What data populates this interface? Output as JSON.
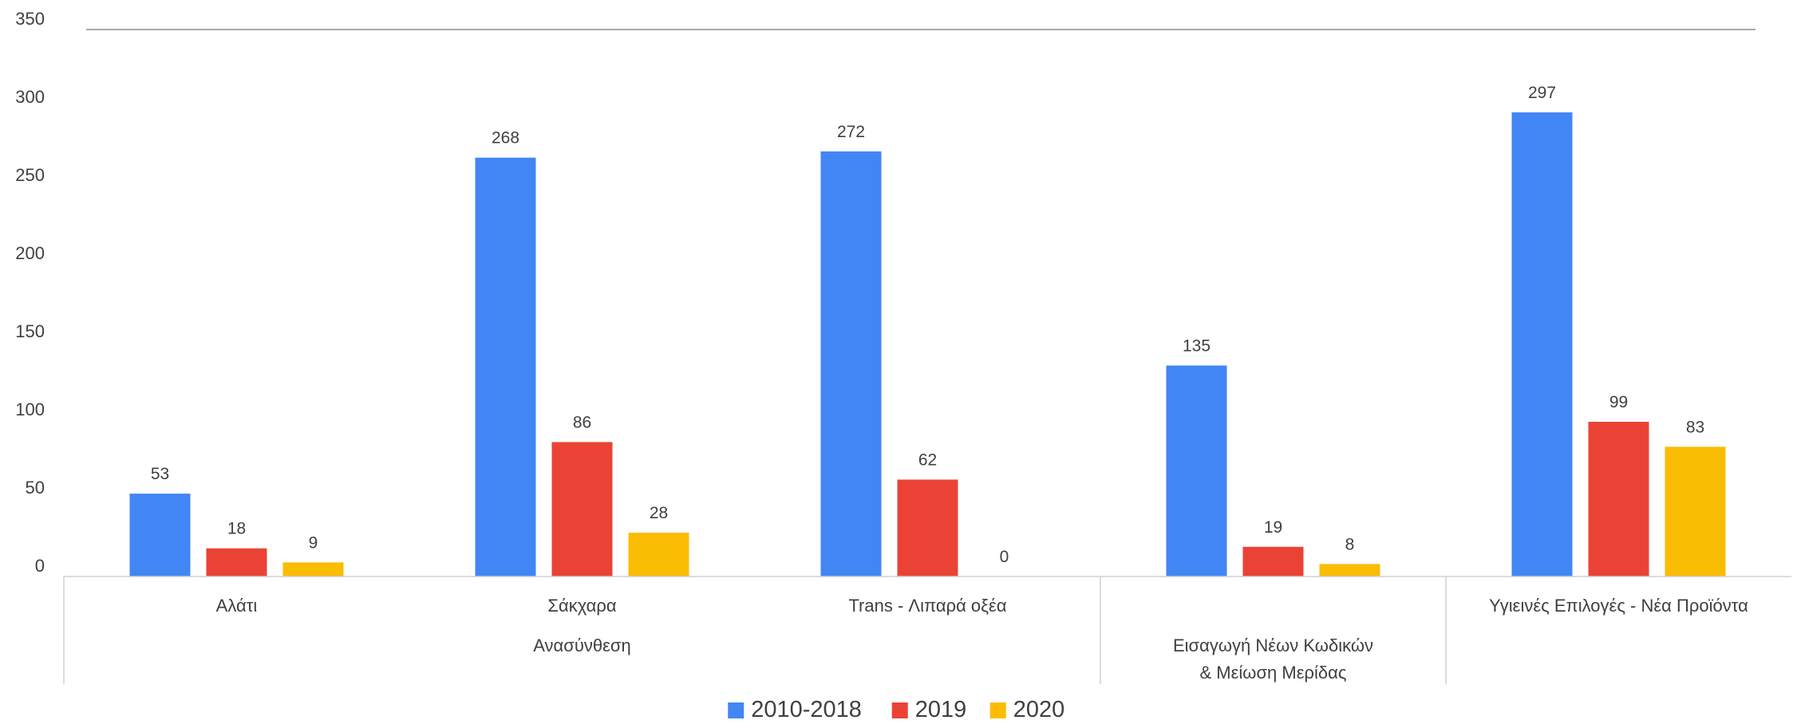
{
  "chart_data": {
    "type": "bar",
    "categories": [
      "Αλάτι",
      "Σάκχαρα",
      "Trans - Λιπαρά οξέα",
      "Εισαγωγή Νέων Κωδικών & Μείωση Μερίδας",
      "Υγιεινές Επιλογές - Νέα Προϊόντα"
    ],
    "category_lines": [
      [
        "Αλάτι"
      ],
      [
        "Σάκχαρα"
      ],
      [
        "Trans - Λιπαρά οξέα"
      ],
      [
        "Εισαγωγή Νέων Κωδικών",
        "& Μείωση Μερίδας"
      ],
      [
        "Υγιεινές Επιλογές - Νέα Προϊόντα"
      ]
    ],
    "groups": [
      {
        "label": "Ανασύνθεση",
        "categories": [
          0,
          1,
          2
        ]
      },
      {
        "label": "",
        "categories": [
          3
        ]
      },
      {
        "label": "",
        "categories": [
          4
        ]
      }
    ],
    "series": [
      {
        "name": "2010-2018",
        "color": "#4285F4",
        "values": [
          53,
          268,
          272,
          135,
          297
        ]
      },
      {
        "name": "2019",
        "color": "#EA4335",
        "values": [
          18,
          86,
          62,
          19,
          99
        ]
      },
      {
        "name": "2020",
        "color": "#FBBC04",
        "values": [
          9,
          28,
          0,
          8,
          83
        ]
      }
    ],
    "ylim": [
      0,
      350
    ],
    "yticks": [
      0,
      50,
      100,
      150,
      200,
      250,
      300,
      350
    ],
    "data_labels": true,
    "legend_position": "bottom-center",
    "title": "",
    "xlabel": "",
    "ylabel": ""
  }
}
